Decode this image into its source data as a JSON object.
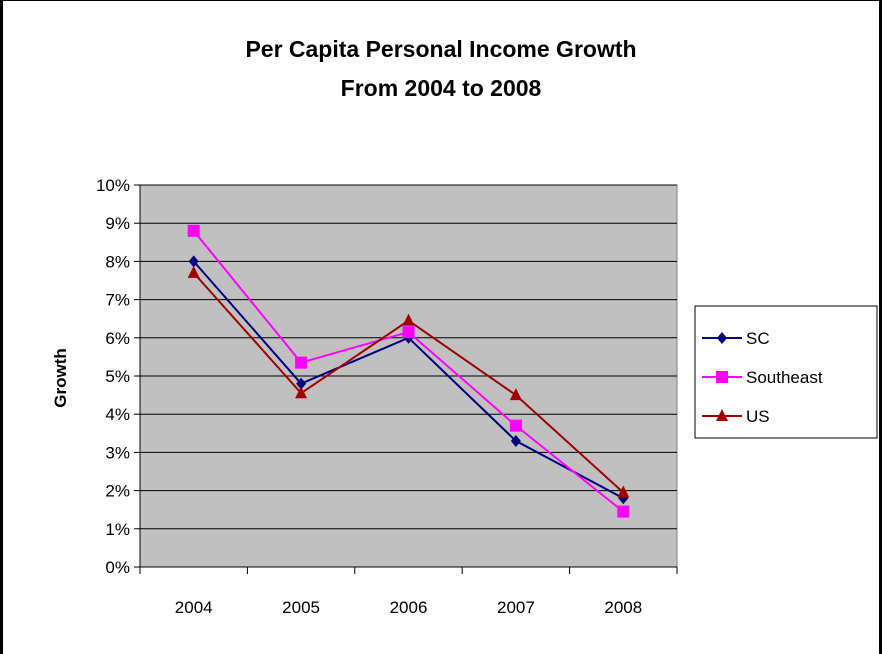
{
  "chart_data": {
    "type": "line",
    "title": [
      "Per Capita Personal Income Growth",
      "From 2004 to 2008"
    ],
    "ylabel": "Growth",
    "xlabel": "",
    "categories": [
      "2004",
      "2005",
      "2006",
      "2007",
      "2008"
    ],
    "ylim": [
      0,
      10
    ],
    "yticks": [
      "0%",
      "1%",
      "2%",
      "3%",
      "4%",
      "5%",
      "6%",
      "7%",
      "8%",
      "9%",
      "10%"
    ],
    "grid": true,
    "legend_position": "right",
    "plot_background": "#c0c0c0",
    "series": [
      {
        "name": "SC",
        "color": "#000080",
        "marker": "diamond",
        "values": [
          8.0,
          4.8,
          6.0,
          3.3,
          1.8
        ]
      },
      {
        "name": "Southeast",
        "color": "#ff00ff",
        "marker": "square",
        "values": [
          8.8,
          5.35,
          6.15,
          3.7,
          1.45
        ]
      },
      {
        "name": "US",
        "color": "#a00000",
        "marker": "triangle",
        "values": [
          7.7,
          4.55,
          6.45,
          4.5,
          1.95
        ]
      }
    ]
  }
}
